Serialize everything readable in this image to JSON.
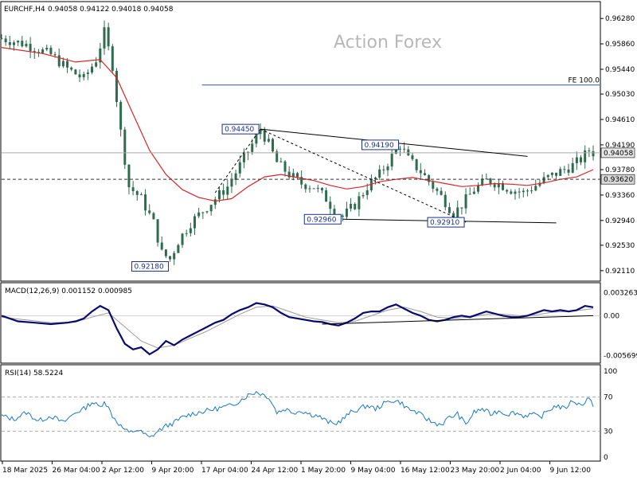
{
  "header": {
    "symbol": "EURCHF,H4",
    "ohlc": "0.94058 0.94122 0.94018 0.94058",
    "watermark": "Action Forex"
  },
  "colors": {
    "candle": "#2e6b4f",
    "ma": "#d62728",
    "macd": "#0a0a6e",
    "signal": "#9a9aa0",
    "rsi": "#1a78c2",
    "fe_line": "#2c5aa0",
    "annotation": "#000000"
  },
  "chart_data": [
    {
      "type": "candlestick",
      "panel": "price",
      "title": "EURCHF,H4",
      "ylim": [
        0.9195,
        0.9648
      ],
      "y_ticks": [
        "0.96280",
        "0.95860",
        "0.95440",
        "0.95030",
        "0.94610",
        "0.94190",
        "0.93780",
        "0.93360",
        "0.92940",
        "0.92530",
        "0.92110"
      ],
      "x_labels": [
        "18 Mar 2025",
        "26 Mar 04:00",
        "2 Apr 12:00",
        "9 Apr 20:00",
        "17 Apr 04:00",
        "24 Apr 12:00",
        "1 May 20:00",
        "9 May 04:00",
        "16 May 12:00",
        "23 May 20:00",
        "2 Jun 04:00",
        "9 Jun 12:00"
      ],
      "close_path": [
        [
          0,
          0.9595
        ],
        [
          6,
          0.9585
        ],
        [
          12,
          0.9568
        ],
        [
          16,
          0.9545
        ],
        [
          20,
          0.9528
        ],
        [
          23,
          0.956
        ],
        [
          25,
          0.9605
        ],
        [
          27,
          0.955
        ],
        [
          29,
          0.944
        ],
        [
          31,
          0.935
        ],
        [
          34,
          0.933
        ],
        [
          37,
          0.929
        ],
        [
          39,
          0.924
        ],
        [
          41,
          0.923
        ],
        [
          43,
          0.926
        ],
        [
          46,
          0.929
        ],
        [
          49,
          0.931
        ],
        [
          52,
          0.933
        ],
        [
          55,
          0.935
        ],
        [
          58,
          0.9385
        ],
        [
          61,
          0.942
        ],
        [
          63,
          0.9445
        ],
        [
          65,
          0.942
        ],
        [
          67,
          0.939
        ],
        [
          70,
          0.937
        ],
        [
          73,
          0.9355
        ],
        [
          76,
          0.935
        ],
        [
          79,
          0.933
        ],
        [
          81,
          0.931
        ],
        [
          83,
          0.93
        ],
        [
          86,
          0.932
        ],
        [
          89,
          0.935
        ],
        [
          92,
          0.937
        ],
        [
          95,
          0.94
        ],
        [
          97,
          0.9419
        ],
        [
          99,
          0.9395
        ],
        [
          102,
          0.9375
        ],
        [
          105,
          0.935
        ],
        [
          108,
          0.9325
        ],
        [
          110,
          0.9305
        ],
        [
          112,
          0.932
        ],
        [
          115,
          0.9345
        ],
        [
          118,
          0.936
        ],
        [
          121,
          0.9355
        ],
        [
          124,
          0.9345
        ],
        [
          127,
          0.934
        ],
        [
          130,
          0.9352
        ],
        [
          133,
          0.9365
        ],
        [
          136,
          0.9375
        ],
        [
          139,
          0.9385
        ],
        [
          141,
          0.9395
        ],
        [
          143,
          0.941
        ],
        [
          144,
          0.9406
        ]
      ],
      "ma_path": [
        [
          0,
          0.958
        ],
        [
          10,
          0.957
        ],
        [
          18,
          0.9556
        ],
        [
          24,
          0.956
        ],
        [
          28,
          0.953
        ],
        [
          32,
          0.947
        ],
        [
          36,
          0.941
        ],
        [
          40,
          0.937
        ],
        [
          44,
          0.9345
        ],
        [
          48,
          0.9332
        ],
        [
          52,
          0.9326
        ],
        [
          56,
          0.933
        ],
        [
          60,
          0.935
        ],
        [
          64,
          0.9366
        ],
        [
          68,
          0.937
        ],
        [
          72,
          0.9365
        ],
        [
          76,
          0.936
        ],
        [
          80,
          0.9352
        ],
        [
          84,
          0.9346
        ],
        [
          88,
          0.935
        ],
        [
          92,
          0.9358
        ],
        [
          96,
          0.9362
        ],
        [
          100,
          0.9365
        ],
        [
          104,
          0.936
        ],
        [
          108,
          0.9355
        ],
        [
          112,
          0.935
        ],
        [
          116,
          0.9352
        ],
        [
          120,
          0.9355
        ],
        [
          124,
          0.9354
        ],
        [
          128,
          0.9352
        ],
        [
          132,
          0.9356
        ],
        [
          136,
          0.9362
        ],
        [
          140,
          0.9366
        ],
        [
          144,
          0.9378
        ]
      ],
      "annotations": [
        {
          "label": "0.94450",
          "x": 63,
          "y": 0.9445,
          "side": "left"
        },
        {
          "label": "0.94190",
          "x": 97,
          "y": 0.9419,
          "side": "left"
        },
        {
          "label": "0.92960",
          "x": 83,
          "y": 0.9296,
          "side": "left"
        },
        {
          "label": "0.92910",
          "x": 113,
          "y": 0.9291,
          "side": "left"
        },
        {
          "label": "0.92180",
          "x": 41,
          "y": 0.9218,
          "side": "left"
        }
      ],
      "trendlines": [
        {
          "from": [
            63,
            0.9445
          ],
          "to": [
            128,
            0.94
          ],
          "style": "solid"
        },
        {
          "from": [
            83,
            0.9296
          ],
          "to": [
            135,
            0.929
          ],
          "style": "solid"
        },
        {
          "from": [
            52,
            0.934
          ],
          "to": [
            63,
            0.9445
          ],
          "style": "dashed"
        },
        {
          "from": [
            63,
            0.9445
          ],
          "to": [
            113,
            0.9291
          ],
          "style": "dashed"
        }
      ],
      "fe_level": {
        "label": "FE 100.0",
        "value": 0.9518,
        "from_x": 41
      },
      "hlines": [
        {
          "value": 0.94058,
          "label": "0.94058",
          "style": "solid"
        },
        {
          "value": 0.9362,
          "label": "0.93620",
          "style": "dashed"
        }
      ]
    },
    {
      "type": "line",
      "panel": "macd",
      "title": "MACD(12,26,9) 0.001152 0.000985",
      "ylim": [
        -0.0063,
        0.0039
      ],
      "y_ticks": [
        "0.003263",
        "0.00",
        "-0.005699"
      ],
      "macd_path": [
        [
          0,
          0.0
        ],
        [
          4,
          -0.0008
        ],
        [
          8,
          -0.001
        ],
        [
          12,
          -0.0012
        ],
        [
          16,
          -0.001
        ],
        [
          18,
          -0.0008
        ],
        [
          20,
          -0.0004
        ],
        [
          22,
          0.0006
        ],
        [
          24,
          0.0014
        ],
        [
          26,
          0.0008
        ],
        [
          28,
          -0.0018
        ],
        [
          30,
          -0.004
        ],
        [
          32,
          -0.0048
        ],
        [
          34,
          -0.0045
        ],
        [
          36,
          -0.0055
        ],
        [
          38,
          -0.0048
        ],
        [
          40,
          -0.0036
        ],
        [
          42,
          -0.0042
        ],
        [
          44,
          -0.0034
        ],
        [
          46,
          -0.0028
        ],
        [
          48,
          -0.0022
        ],
        [
          50,
          -0.0016
        ],
        [
          52,
          -0.001
        ],
        [
          54,
          -0.0006
        ],
        [
          56,
          0.0002
        ],
        [
          58,
          0.0008
        ],
        [
          60,
          0.0012
        ],
        [
          62,
          0.0018
        ],
        [
          64,
          0.0016
        ],
        [
          66,
          0.0012
        ],
        [
          68,
          0.0004
        ],
        [
          70,
          -0.0002
        ],
        [
          72,
          -0.0004
        ],
        [
          74,
          -0.0006
        ],
        [
          76,
          -0.0008
        ],
        [
          78,
          -0.0009
        ],
        [
          80,
          -0.0012
        ],
        [
          82,
          -0.0014
        ],
        [
          84,
          -0.001
        ],
        [
          86,
          -0.0004
        ],
        [
          88,
          0.0004
        ],
        [
          90,
          0.0006
        ],
        [
          92,
          0.0006
        ],
        [
          94,
          0.0012
        ],
        [
          96,
          0.0016
        ],
        [
          98,
          0.001
        ],
        [
          100,
          0.0004
        ],
        [
          102,
          0.0
        ],
        [
          104,
          -0.0006
        ],
        [
          106,
          -0.0008
        ],
        [
          108,
          -0.0006
        ],
        [
          110,
          -0.0002
        ],
        [
          112,
          0.0
        ],
        [
          114,
          -0.0002
        ],
        [
          116,
          0.0002
        ],
        [
          118,
          0.0006
        ],
        [
          120,
          0.0003
        ],
        [
          122,
          0.0
        ],
        [
          124,
          -0.0002
        ],
        [
          126,
          -0.0002
        ],
        [
          128,
          0.0
        ],
        [
          130,
          0.0004
        ],
        [
          132,
          0.0008
        ],
        [
          134,
          0.0006
        ],
        [
          136,
          0.0008
        ],
        [
          138,
          0.0006
        ],
        [
          140,
          0.0008
        ],
        [
          142,
          0.0014
        ],
        [
          144,
          0.0012
        ]
      ],
      "signal_path": [
        [
          0,
          -0.0002
        ],
        [
          6,
          -0.0006
        ],
        [
          12,
          -0.001
        ],
        [
          18,
          -0.0009
        ],
        [
          22,
          -0.0002
        ],
        [
          26,
          0.0004
        ],
        [
          30,
          -0.0016
        ],
        [
          34,
          -0.0036
        ],
        [
          38,
          -0.0046
        ],
        [
          42,
          -0.0042
        ],
        [
          46,
          -0.0032
        ],
        [
          50,
          -0.0022
        ],
        [
          54,
          -0.001
        ],
        [
          58,
          0.0002
        ],
        [
          62,
          0.0012
        ],
        [
          66,
          0.0014
        ],
        [
          70,
          0.0006
        ],
        [
          74,
          -0.0002
        ],
        [
          78,
          -0.0006
        ],
        [
          82,
          -0.001
        ],
        [
          86,
          -0.0008
        ],
        [
          90,
          0.0
        ],
        [
          94,
          0.0008
        ],
        [
          98,
          0.0012
        ],
        [
          102,
          0.0006
        ],
        [
          106,
          -0.0002
        ],
        [
          110,
          -0.0004
        ],
        [
          114,
          -0.0002
        ],
        [
          118,
          0.0002
        ],
        [
          122,
          0.0002
        ],
        [
          126,
          0.0
        ],
        [
          130,
          0.0001
        ],
        [
          134,
          0.0005
        ],
        [
          138,
          0.0006
        ],
        [
          144,
          0.001
        ]
      ],
      "trendline": {
        "from": [
          78,
          -0.0012
        ],
        "to": [
          144,
          0.0
        ]
      }
    },
    {
      "type": "line",
      "panel": "rsi",
      "title": "RSI(14) 58.5224",
      "ylim": [
        0,
        100
      ],
      "y_ticks": [
        100,
        70,
        30,
        0
      ],
      "levels": [
        70,
        30
      ],
      "rsi_path": [
        [
          0,
          48
        ],
        [
          3,
          44
        ],
        [
          6,
          52
        ],
        [
          9,
          42
        ],
        [
          12,
          48
        ],
        [
          15,
          40
        ],
        [
          18,
          52
        ],
        [
          20,
          56
        ],
        [
          22,
          64
        ],
        [
          24,
          58
        ],
        [
          25,
          66
        ],
        [
          27,
          48
        ],
        [
          29,
          36
        ],
        [
          31,
          28
        ],
        [
          33,
          32
        ],
        [
          35,
          26
        ],
        [
          36,
          22
        ],
        [
          38,
          30
        ],
        [
          40,
          36
        ],
        [
          42,
          40
        ],
        [
          44,
          46
        ],
        [
          46,
          50
        ],
        [
          48,
          52
        ],
        [
          50,
          54
        ],
        [
          52,
          56
        ],
        [
          54,
          58
        ],
        [
          56,
          60
        ],
        [
          58,
          66
        ],
        [
          60,
          72
        ],
        [
          62,
          76
        ],
        [
          64,
          72
        ],
        [
          65,
          70
        ],
        [
          67,
          52
        ],
        [
          69,
          56
        ],
        [
          71,
          52
        ],
        [
          73,
          54
        ],
        [
          75,
          50
        ],
        [
          77,
          48
        ],
        [
          79,
          42
        ],
        [
          81,
          38
        ],
        [
          83,
          44
        ],
        [
          85,
          52
        ],
        [
          87,
          56
        ],
        [
          89,
          60
        ],
        [
          91,
          56
        ],
        [
          93,
          62
        ],
        [
          95,
          66
        ],
        [
          97,
          64
        ],
        [
          99,
          56
        ],
        [
          101,
          52
        ],
        [
          103,
          46
        ],
        [
          105,
          40
        ],
        [
          107,
          38
        ],
        [
          109,
          46
        ],
        [
          111,
          50
        ],
        [
          113,
          38
        ],
        [
          115,
          52
        ],
        [
          117,
          56
        ],
        [
          119,
          50
        ],
        [
          121,
          54
        ],
        [
          123,
          50
        ],
        [
          125,
          52
        ],
        [
          127,
          48
        ],
        [
          129,
          50
        ],
        [
          131,
          46
        ],
        [
          133,
          54
        ],
        [
          135,
          60
        ],
        [
          137,
          56
        ],
        [
          139,
          66
        ],
        [
          141,
          60
        ],
        [
          143,
          70
        ],
        [
          144,
          58.5
        ]
      ]
    }
  ]
}
